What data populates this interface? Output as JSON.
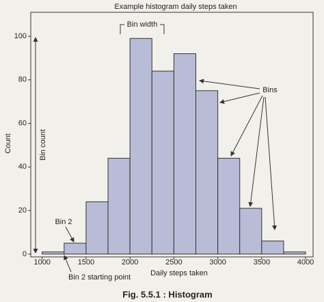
{
  "chart_data": {
    "type": "histogram",
    "title": "Example histogram daily steps taken",
    "x_label": "Daily steps taken",
    "y_label": "Count",
    "caption": "Fig. 5.5.1 : Histogram",
    "annotations": [
      "Bin width",
      "Bins",
      "Bin count",
      "Bin 2",
      "Bin 2 starting point"
    ],
    "bins": [
      1000,
      1250,
      1500,
      1750,
      2000,
      2250,
      2500,
      2750,
      3000,
      3250,
      3500,
      3750,
      4000
    ],
    "counts": [
      1,
      5,
      24,
      44,
      99,
      84,
      92,
      75,
      44,
      21,
      6,
      1
    ],
    "color": "#b9bcd6",
    "xlim": [
      870,
      4085
    ],
    "ylim": [
      -1.3,
      111
    ],
    "xticks": [
      1000,
      1500,
      2000,
      2500,
      3000,
      3500,
      4000
    ],
    "yticks": [
      0,
      20,
      40,
      60,
      80,
      100
    ]
  }
}
